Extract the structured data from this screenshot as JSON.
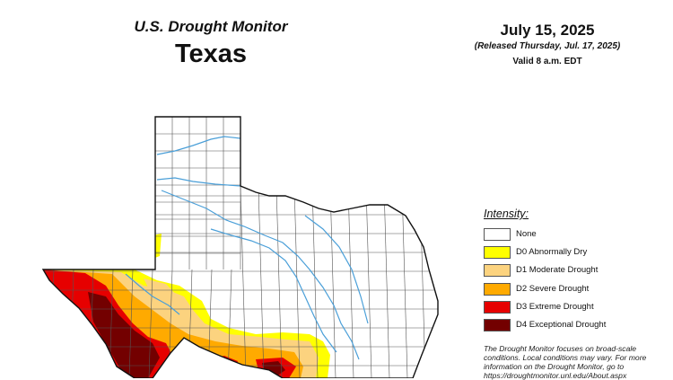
{
  "header": {
    "title_line1": "U.S. Drought Monitor",
    "title_line2": "Texas",
    "map_date": "July 15, 2025",
    "released": "(Released Thursday, Jul. 17, 2025)",
    "valid": "Valid 8 a.m. EDT"
  },
  "legend": {
    "title": "Intensity:",
    "items": [
      {
        "label": "None",
        "color": "#ffffff"
      },
      {
        "label": "D0 Abnormally Dry",
        "color": "#ffff00"
      },
      {
        "label": "D1 Moderate Drought",
        "color": "#fcd37f"
      },
      {
        "label": "D2 Severe Drought",
        "color": "#ffaa00"
      },
      {
        "label": "D3 Extreme Drought",
        "color": "#e60000"
      },
      {
        "label": "D4 Exceptional Drought",
        "color": "#730000"
      }
    ]
  },
  "note": "The Drought Monitor focuses on broad-scale conditions. Local conditions may vary. For more information on the Drought Monitor, go to https://droughtmonitor.unl.edu/About.aspx",
  "colors": {
    "county_line": "#555555",
    "river": "#4a9fd8",
    "outline": "#111111"
  }
}
